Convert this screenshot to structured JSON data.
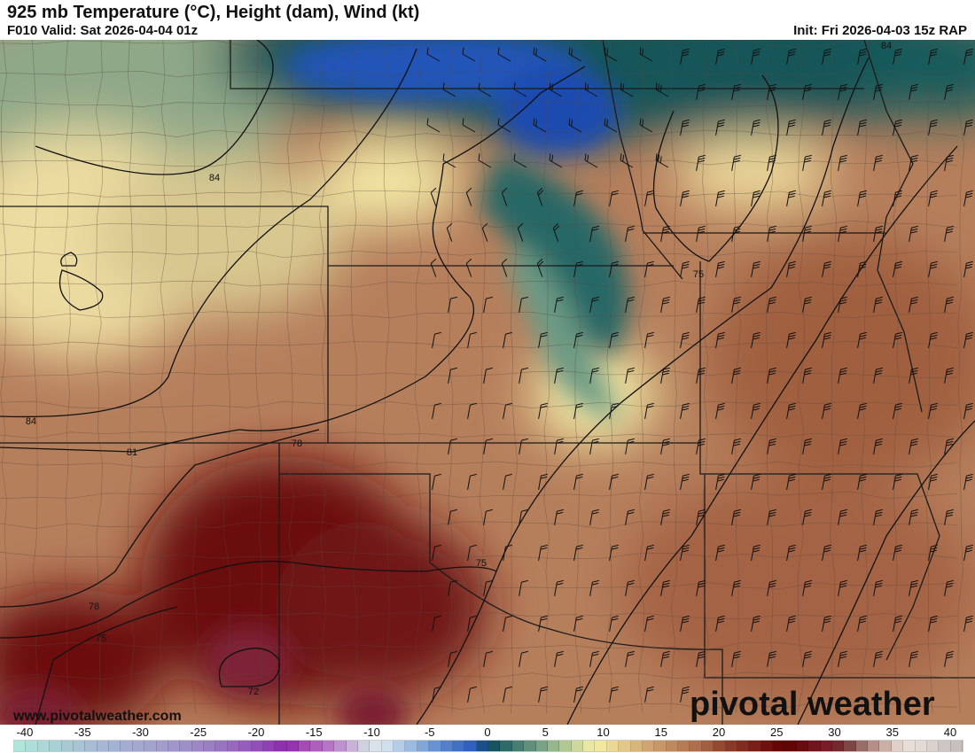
{
  "header": {
    "title": "925 mb Temperature (°C), Height (dam), Wind (kt)",
    "valid": "F010 Valid: Sat 2026-04-04 01z",
    "init": "Init: Fri 2026-04-03 15z RAP"
  },
  "map": {
    "height_contour_labels": [
      "84",
      "84",
      "84",
      "81",
      "78",
      "78",
      "75",
      "75",
      "75",
      "72"
    ],
    "watermark_url": "www.pivotalweather.com",
    "logo_text": "pivotal weather"
  },
  "colorbar": {
    "units": "°C",
    "min": -40,
    "max": 40,
    "tick_labels": [
      "-40",
      "-35",
      "-30",
      "-25",
      "-20",
      "-15",
      "-10",
      "-5",
      "0",
      "5",
      "10",
      "15",
      "20",
      "25",
      "30",
      "35",
      "40"
    ],
    "stops": [
      {
        "value": -40,
        "color": "#b0e8dc"
      },
      {
        "value": -36,
        "color": "#a8ccd4"
      },
      {
        "value": -32,
        "color": "#a4b4d4"
      },
      {
        "value": -28,
        "color": "#a4a0cc"
      },
      {
        "value": -24,
        "color": "#9c84c4"
      },
      {
        "value": -20,
        "color": "#9458b8"
      },
      {
        "value": -17,
        "color": "#8a2aaa"
      },
      {
        "value": -16,
        "color": "#a040b0"
      },
      {
        "value": -13,
        "color": "#b880c8"
      },
      {
        "value": -11,
        "color": "#cac4dc"
      },
      {
        "value": -10,
        "color": "#d4dce4"
      },
      {
        "value": -9,
        "color": "#dce8f0"
      },
      {
        "value": -7,
        "color": "#a8c4e4"
      },
      {
        "value": -4,
        "color": "#5c88cc"
      },
      {
        "value": -1,
        "color": "#2858bc"
      },
      {
        "value": 0,
        "color": "#0c4858"
      },
      {
        "value": 2,
        "color": "#3c7470"
      },
      {
        "value": 4,
        "color": "#6c9880"
      },
      {
        "value": 6,
        "color": "#a4c090"
      },
      {
        "value": 8,
        "color": "#dce0a0"
      },
      {
        "value": 9,
        "color": "#f4f0a4"
      },
      {
        "value": 11,
        "color": "#e8d090"
      },
      {
        "value": 13,
        "color": "#d4ac78"
      },
      {
        "value": 15,
        "color": "#c49064"
      },
      {
        "value": 18,
        "color": "#a86848"
      },
      {
        "value": 20,
        "color": "#8c402c"
      },
      {
        "value": 23,
        "color": "#741814"
      },
      {
        "value": 25,
        "color": "#600000"
      },
      {
        "value": 27,
        "color": "#6c1018"
      },
      {
        "value": 29,
        "color": "#7c2030"
      },
      {
        "value": 30,
        "color": "#6c3030"
      },
      {
        "value": 31,
        "color": "#8c5c58"
      },
      {
        "value": 33,
        "color": "#c0a098"
      },
      {
        "value": 35,
        "color": "#ece0d8"
      },
      {
        "value": 37,
        "color": "#e0d8d4"
      },
      {
        "value": 39,
        "color": "#c8c0bc"
      }
    ]
  }
}
